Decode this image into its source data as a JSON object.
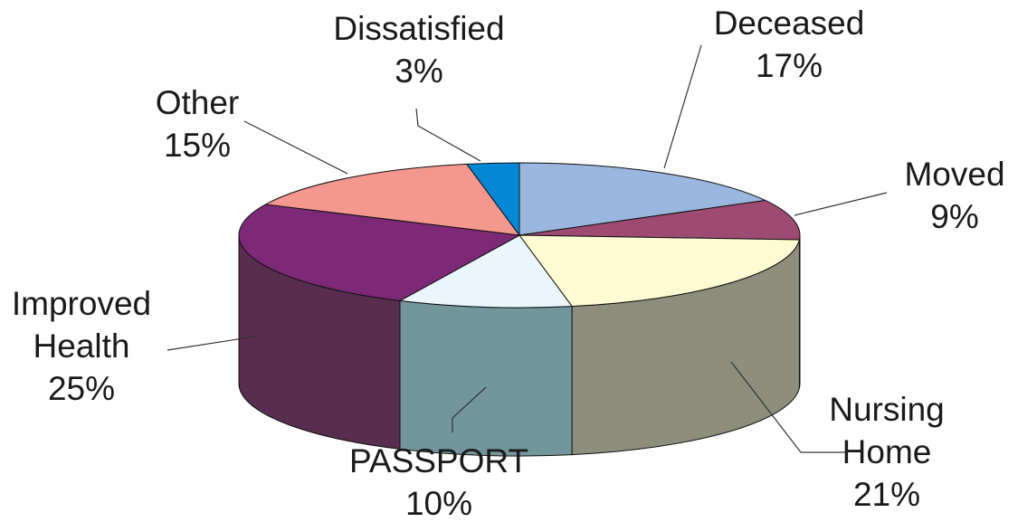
{
  "chart_data": {
    "type": "pie",
    "title": "",
    "slices": [
      {
        "name": "Deceased",
        "label_lines": [
          "Deceased"
        ],
        "value": 17,
        "value_label": "17%",
        "top_color": "#9bb7df",
        "side_color": "#7d93b5"
      },
      {
        "name": "Moved",
        "label_lines": [
          "Moved"
        ],
        "value": 9,
        "value_label": "9%",
        "top_color": "#9d4b73",
        "side_color": "#7a3a59"
      },
      {
        "name": "Nursing Home",
        "label_lines": [
          "Nursing",
          "Home"
        ],
        "value": 21,
        "value_label": "21%",
        "top_color": "#fffbd3",
        "side_color": "#8e8e7c"
      },
      {
        "name": "PASSPORT",
        "label_lines": [
          "PASSPORT"
        ],
        "value": 10,
        "value_label": "10%",
        "top_color": "#eaf5fc",
        "side_color": "#72969c"
      },
      {
        "name": "Improved Health",
        "label_lines": [
          "Improved",
          "Health"
        ],
        "value": 25,
        "value_label": "25%",
        "top_color": "#7e2978",
        "side_color": "#582d4f"
      },
      {
        "name": "Other",
        "label_lines": [
          "Other"
        ],
        "value": 15,
        "value_label": "15%",
        "top_color": "#f4978f",
        "side_color": "#c47a74"
      },
      {
        "name": "Dissatisfied",
        "label_lines": [
          "Dissatisfied"
        ],
        "value": 3,
        "value_label": "3%",
        "top_color": "#0488d6",
        "side_color": "#036aa7"
      }
    ],
    "start_angle_deg": 90,
    "direction": "clockwise",
    "style": "3d-pie"
  }
}
